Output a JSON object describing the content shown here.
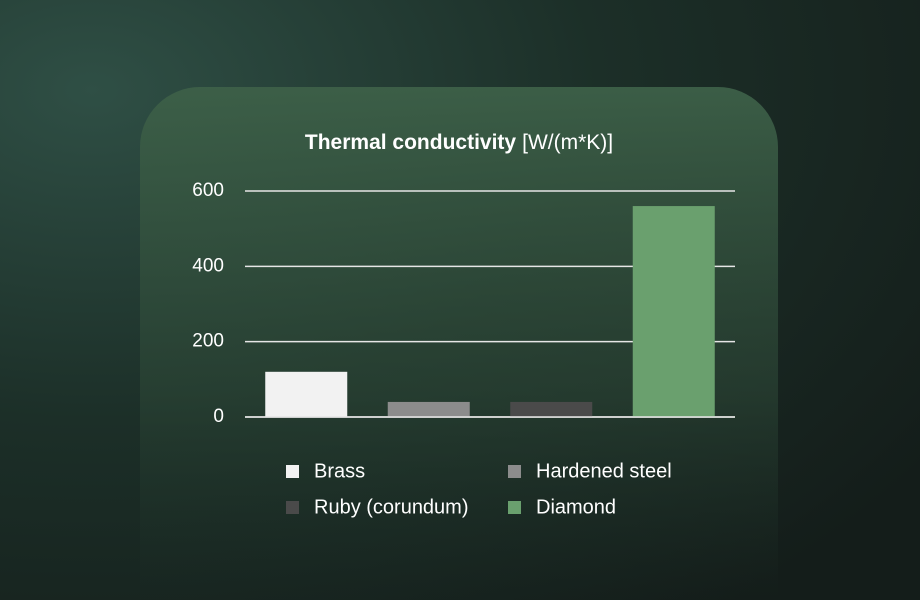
{
  "chart_data": {
    "type": "bar",
    "title": "Thermal conductivity",
    "unit": "[W/(m*K)]",
    "series": [
      {
        "name": "Brass",
        "color": "#f2f2f2",
        "values": [
          120
        ]
      },
      {
        "name": "Hardened steel",
        "color": "#8c8c8c",
        "values": [
          40
        ]
      },
      {
        "name": "Ruby (corundum)",
        "color": "#4a4a4a",
        "values": [
          40
        ]
      },
      {
        "name": "Diamond",
        "color": "#6aa06e",
        "values": [
          560
        ]
      }
    ],
    "ylim": [
      0,
      600
    ],
    "yticks": [
      0,
      200,
      400,
      600
    ],
    "grid": true
  }
}
